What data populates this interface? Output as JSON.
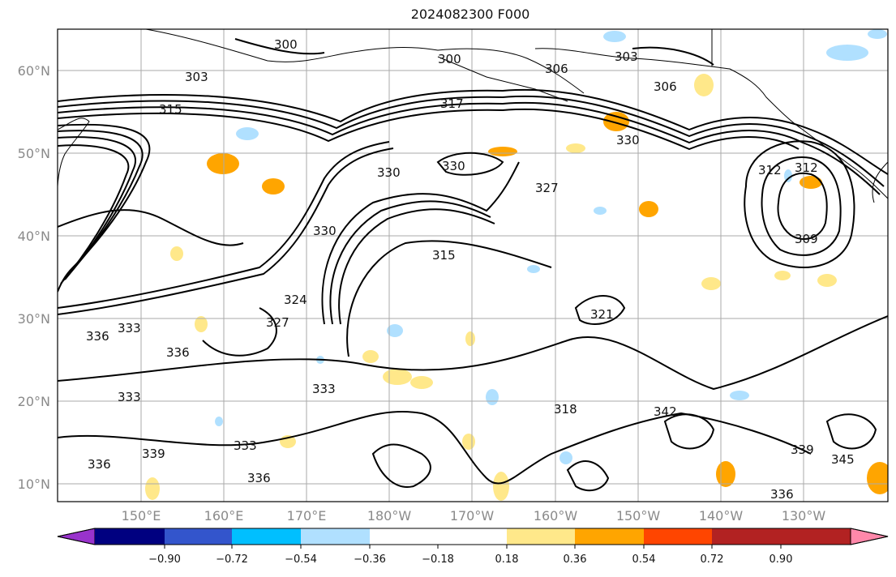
{
  "title": "2024082300 F000",
  "map": {
    "lon_range": [
      140,
      -120
    ],
    "lat_range": [
      8,
      65
    ],
    "gridlines": true,
    "lat_ticks": [
      "10°N",
      "20°N",
      "30°N",
      "40°N",
      "50°N",
      "60°N"
    ],
    "lon_ticks": [
      "150°E",
      "160°E",
      "170°E",
      "180°W",
      "170°W",
      "160°W",
      "150°W",
      "140°W",
      "130°W"
    ],
    "contour_color": "#000000",
    "contour_labels": [
      "300",
      "300",
      "303",
      "303",
      "306",
      "306",
      "309",
      "312",
      "312",
      "315",
      "315",
      "317",
      "318",
      "321",
      "324",
      "327",
      "327",
      "330",
      "330",
      "330",
      "330",
      "333",
      "333",
      "333",
      "333",
      "336",
      "336",
      "336",
      "336",
      "336",
      "339",
      "339",
      "342",
      "345"
    ]
  },
  "colorbar": {
    "colors": [
      "#9933cc",
      "#000080",
      "#3355cc",
      "#00bfff",
      "#b0e0ff",
      "#ffffff",
      "#ffe88a",
      "#ffa500",
      "#ff4500",
      "#b22222",
      "#ff88aa"
    ],
    "tick_labels": [
      "−0.90",
      "−0.72",
      "−0.54",
      "−0.36",
      "−0.18",
      "0.18",
      "0.36",
      "0.54",
      "0.72",
      "0.90"
    ]
  }
}
